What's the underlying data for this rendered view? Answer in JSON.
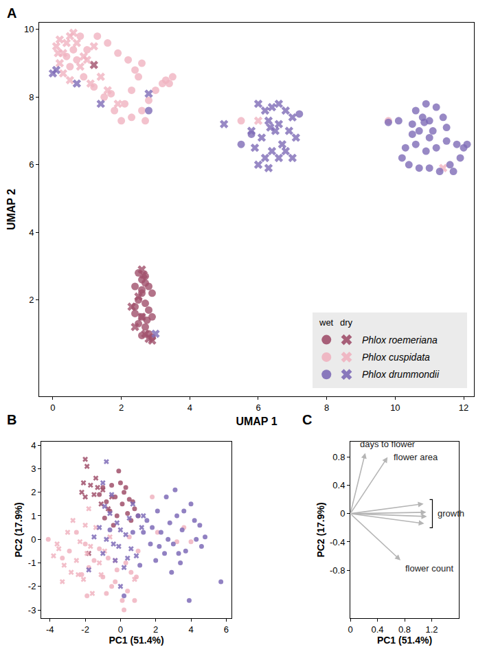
{
  "chart_data": [
    {
      "panel": "A",
      "type": "scatter",
      "x_label": "UMAP 1",
      "y_label": "UMAP 2",
      "xlim": [
        -0.4,
        12.3
      ],
      "ylim": [
        -0.85,
        10.2
      ],
      "xticks": [
        0,
        2,
        4,
        6,
        8,
        10,
        12
      ],
      "yticks": [
        2,
        4,
        6,
        8,
        10
      ],
      "legend": "bottom right",
      "legend_headers": [
        "wet",
        "dry"
      ],
      "series": [
        {
          "name": "Phlox roemeriana",
          "condition": "wet",
          "color": "#a0506b",
          "marker": "circle",
          "x": [
            2.5,
            2.6,
            2.7,
            2.4,
            2.8,
            2.6,
            2.9,
            2.5,
            2.7,
            2.4,
            2.8,
            2.6,
            2.9,
            2.5,
            2.7,
            2.8,
            2.6,
            2.9,
            2.4,
            2.7,
            2.6,
            2.75
          ],
          "y": [
            2.8,
            2.6,
            2.5,
            2.4,
            2.4,
            2.2,
            2.2,
            2.0,
            1.9,
            1.8,
            1.7,
            1.5,
            1.5,
            1.3,
            1.2,
            1.0,
            0.95,
            0.9,
            1.6,
            2.7,
            2.3,
            1.4
          ]
        },
        {
          "name": "Phlox roemeriana",
          "condition": "dry",
          "color": "#a0506b",
          "marker": "x",
          "x": [
            2.6,
            2.3,
            2.6,
            2.8,
            2.9,
            2.7,
            1.2,
            2.5,
            2.4,
            2.65
          ],
          "y": [
            2.9,
            1.8,
            1.5,
            0.85,
            0.8,
            1.0,
            8.95,
            2.1,
            1.2,
            2.75
          ]
        },
        {
          "name": "Phlox cuspidata",
          "condition": "wet",
          "color": "#f0b3c0",
          "marker": "circle",
          "x": [
            0.6,
            0.8,
            0.7,
            0.5,
            0.9,
            1.2,
            1.5,
            1.8,
            2.0,
            2.3,
            2.6,
            2.8,
            3.0,
            3.2,
            3.5,
            3.3,
            2.4,
            2.6,
            2.2,
            1.9,
            1.6,
            1.3,
            2.5,
            2.3,
            2.1,
            1.0,
            1.7,
            3.4,
            5.5,
            9.8,
            0.4,
            2.7
          ],
          "y": [
            9.4,
            9.8,
            9.1,
            8.9,
            8.6,
            8.3,
            8.0,
            7.6,
            7.3,
            7.4,
            7.6,
            7.9,
            8.2,
            8.4,
            8.6,
            8.5,
            8.8,
            9.0,
            9.1,
            9.3,
            9.6,
            9.8,
            8.6,
            8.2,
            7.8,
            9.4,
            8.1,
            8.4,
            7.3,
            7.3,
            9.2,
            7.3
          ]
        },
        {
          "name": "Phlox cuspidata",
          "condition": "dry",
          "color": "#f0b3c0",
          "marker": "x",
          "x": [
            0.1,
            0.2,
            0.3,
            0.4,
            0.5,
            0.6,
            0.2,
            0.3,
            0.5,
            0.8,
            1.0,
            1.1,
            1.4,
            1.6,
            1.9,
            0.7,
            1.2,
            6.0,
            11.4,
            0.15,
            0.9
          ],
          "y": [
            9.5,
            9.7,
            9.3,
            9.6,
            9.8,
            9.9,
            9.0,
            8.7,
            8.5,
            8.9,
            9.1,
            8.4,
            8.6,
            8.2,
            7.8,
            9.6,
            9.5,
            7.3,
            5.9,
            9.3,
            9.2
          ]
        },
        {
          "name": "Phlox drummondii",
          "condition": "wet",
          "color": "#7e6bb7",
          "marker": "circle",
          "x": [
            10.6,
            10.9,
            11.2,
            10.8,
            11.0,
            11.4,
            10.5,
            10.7,
            11.1,
            11.5,
            11.8,
            12.0,
            11.9,
            11.6,
            11.3,
            11.0,
            10.7,
            10.4,
            10.2,
            10.3,
            10.6,
            10.9,
            11.2,
            11.5,
            11.0,
            9.8,
            10.5,
            11.7,
            12.1,
            10.1,
            5.5,
            5.8,
            7.2,
            2.8,
            10.85
          ],
          "y": [
            7.6,
            7.8,
            7.7,
            7.4,
            7.3,
            7.4,
            7.2,
            7.0,
            7.0,
            7.1,
            6.6,
            6.5,
            6.2,
            6.0,
            5.8,
            5.9,
            5.9,
            6.0,
            6.2,
            6.5,
            6.6,
            6.4,
            6.5,
            6.7,
            6.8,
            7.25,
            6.9,
            5.8,
            6.6,
            7.3,
            6.6,
            6.9,
            7.5,
            7.6,
            7.25
          ]
        },
        {
          "name": "Phlox drummondii",
          "condition": "dry",
          "color": "#7e6bb7",
          "marker": "x",
          "x": [
            6.0,
            6.2,
            6.4,
            6.6,
            6.8,
            7.0,
            6.3,
            6.6,
            6.9,
            7.1,
            6.7,
            6.4,
            6.2,
            6.0,
            6.3,
            6.6,
            6.8,
            5.9,
            5.8,
            5.0,
            6.1,
            6.5,
            7.0,
            0.0,
            0.1,
            0.7,
            1.4,
            2.8,
            3.0,
            6.35
          ],
          "y": [
            7.8,
            7.6,
            7.7,
            7.8,
            7.6,
            7.4,
            7.3,
            7.2,
            7.0,
            6.8,
            6.6,
            6.4,
            6.2,
            6.0,
            5.9,
            6.2,
            6.4,
            6.5,
            7.0,
            7.2,
            6.8,
            7.0,
            6.2,
            8.7,
            8.8,
            8.4,
            7.8,
            8.1,
            1.0,
            7.1
          ]
        }
      ]
    },
    {
      "panel": "B",
      "type": "scatter",
      "x_label": "PC1 (51.4%)",
      "y_label": "PC2 (17.9%)",
      "xlim": [
        -4.5,
        6.3
      ],
      "ylim": [
        -3.35,
        4.15
      ],
      "xticks": [
        -4,
        -2,
        0,
        2,
        4,
        6
      ],
      "yticks": [
        -3,
        -2,
        -1,
        0,
        1,
        2,
        3,
        4
      ],
      "series": [
        {
          "color": "#a0506b",
          "marker": "circle",
          "x": [
            -0.1,
            0,
            -0.5,
            -1.0,
            0.2,
            -0.3,
            0.5,
            -0.8,
            0.1,
            0.8,
            0.4,
            -0.2,
            -0.6,
            0.6,
            1.0,
            -1.2,
            0.3,
            -0.4,
            0.7,
            -0.9
          ],
          "y": [
            2.9,
            2.4,
            2.3,
            2.2,
            2.0,
            1.8,
            1.7,
            1.6,
            1.5,
            1.3,
            1.1,
            1.0,
            1.2,
            0.8,
            1.0,
            1.9,
            2.2,
            0.6,
            1.6,
            0.9
          ]
        },
        {
          "color": "#a0506b",
          "marker": "x",
          "x": [
            -2,
            -1.9,
            -2.1,
            -1.7,
            -1.3,
            -1.0,
            -1.5,
            -2.0,
            -1.1,
            -0.7,
            -1.8,
            -2.2,
            -1.4,
            -0.5
          ],
          "y": [
            3.4,
            3.1,
            2.4,
            2.3,
            2.2,
            2.1,
            1.9,
            1.8,
            1.5,
            1.3,
            -0.6,
            2.0,
            2.6,
            1.8
          ]
        },
        {
          "color": "#f0b3c0",
          "marker": "circle",
          "x": [
            -4.1,
            -3.3,
            -2.9,
            -2.5,
            -2.0,
            -1.8,
            -1.5,
            -1.2,
            -1.0,
            -0.7,
            -0.5,
            -0.2,
            0.1,
            0.3,
            0.4,
            0.8,
            0.2,
            1.0,
            0.5,
            -2.2,
            -1.9,
            -0.3,
            0.9,
            3.2,
            3.6,
            4.0,
            1.8,
            2.1,
            -0.8,
            0.6
          ],
          "y": [
            0,
            -0.8,
            -0.5,
            0.3,
            -0.2,
            -1.2,
            -0.9,
            -0.4,
            -1.6,
            -0.8,
            -2.0,
            -1.3,
            -2.6,
            -1.0,
            -2.2,
            -2.6,
            -3.0,
            -0.5,
            0.1,
            -1.5,
            -2.4,
            -1.8,
            -1.6,
            -0.1,
            0.5,
            -0.1,
            1.8,
            0.3,
            -2.3,
            -1.4
          ]
        },
        {
          "color": "#f0b3c0",
          "marker": "x",
          "x": [
            -3.8,
            -3.5,
            -3.2,
            -3.0,
            -2.8,
            -2.5,
            -2.3,
            -2.1,
            -1.9,
            -1.6,
            -1.4,
            -1.2,
            -0.9,
            -0.6,
            -3.6,
            -2.7,
            -1.8,
            -2.4,
            -3.3,
            -1.1,
            -0.3,
            -1.7,
            0.8,
            -2.0
          ],
          "y": [
            -0.7,
            -0.4,
            -1.1,
            0.3,
            -1.4,
            -0.9,
            -0.1,
            -1.7,
            -0.6,
            -2.3,
            0.5,
            -1.0,
            -0.5,
            0.1,
            -0.2,
            0.8,
            1.3,
            -1.5,
            -1.8,
            -1.5,
            -0.9,
            -0.3,
            -1.7,
            0.6
          ]
        },
        {
          "color": "#7e6bb7",
          "marker": "circle",
          "x": [
            1.0,
            1.5,
            1.8,
            2.1,
            2.3,
            2.6,
            2.8,
            3.0,
            3.2,
            3.5,
            3.7,
            4.0,
            4.3,
            4.6,
            4.8,
            5.7,
            3.1,
            2.5,
            2.0,
            1.7,
            1.3,
            0.7,
            3.9,
            3.4,
            2.9,
            4.2,
            3.6,
            2.2,
            1.1,
            0.2,
            -0.6,
            4.5,
            2.7,
            3.3
          ],
          "y": [
            1.0,
            0.8,
            0.5,
            1.2,
            0.3,
            1.8,
            0.7,
            -0.2,
            1.0,
            0.4,
            -0.5,
            1.5,
            0.0,
            -0.3,
            0.1,
            -1.8,
            2.1,
            -0.6,
            -0.9,
            -0.2,
            0.3,
            0.3,
            -2.6,
            -1.0,
            -1.4,
            0.8,
            1.2,
            -0.3,
            -1.1,
            -2.4,
            0.4,
            0.6,
            0.0,
            -0.6
          ]
        },
        {
          "color": "#7e6bb7",
          "marker": "x",
          "x": [
            -0.8,
            -1.0,
            -0.5,
            -0.2,
            0.0,
            0.3,
            -0.8,
            -0.4,
            -1.2,
            -1.5,
            0.6,
            0.9,
            -0.3,
            -1.0,
            1.2,
            0.5,
            -0.6,
            0.2,
            0.0,
            -1.8,
            1.3,
            0.7,
            -0.1,
            -0.9,
            0.4
          ],
          "y": [
            3.3,
            2.4,
            1.9,
            0.7,
            0.4,
            0.2,
            0.0,
            -0.2,
            0.5,
            0.1,
            -0.4,
            -0.7,
            -0.9,
            -0.6,
            0.5,
            0.9,
            1.1,
            -1.2,
            -2.0,
            -1.3,
            1.0,
            1.5,
            -0.3,
            1.4,
            -0.8
          ]
        }
      ]
    },
    {
      "panel": "C",
      "type": "vectors",
      "x_label": "PC1 (51.4%)",
      "y_label": "PC2 (17.9%)",
      "xlim": [
        0,
        1.6
      ],
      "ylim": [
        -1.48,
        1.02
      ],
      "xticks": [
        0,
        0.4,
        0.8,
        1.2
      ],
      "yticks": [
        -0.8,
        -0.4,
        0,
        0.4,
        0.8
      ],
      "color": "#b5b5b5",
      "vectors": [
        {
          "label": "days to flower",
          "x": [
            0.22
          ],
          "y": [
            0.86
          ]
        },
        {
          "label": "flower area",
          "x": [
            0.55
          ],
          "y": [
            0.8
          ]
        },
        {
          "label": "growth",
          "x": [
            1.08,
            1.12,
            1.13,
            1.09
          ],
          "y": [
            0.14,
            0.02,
            -0.04,
            -0.14
          ]
        },
        {
          "label": "flower count",
          "x": [
            0.74
          ],
          "y": [
            -0.66
          ]
        }
      ]
    }
  ]
}
